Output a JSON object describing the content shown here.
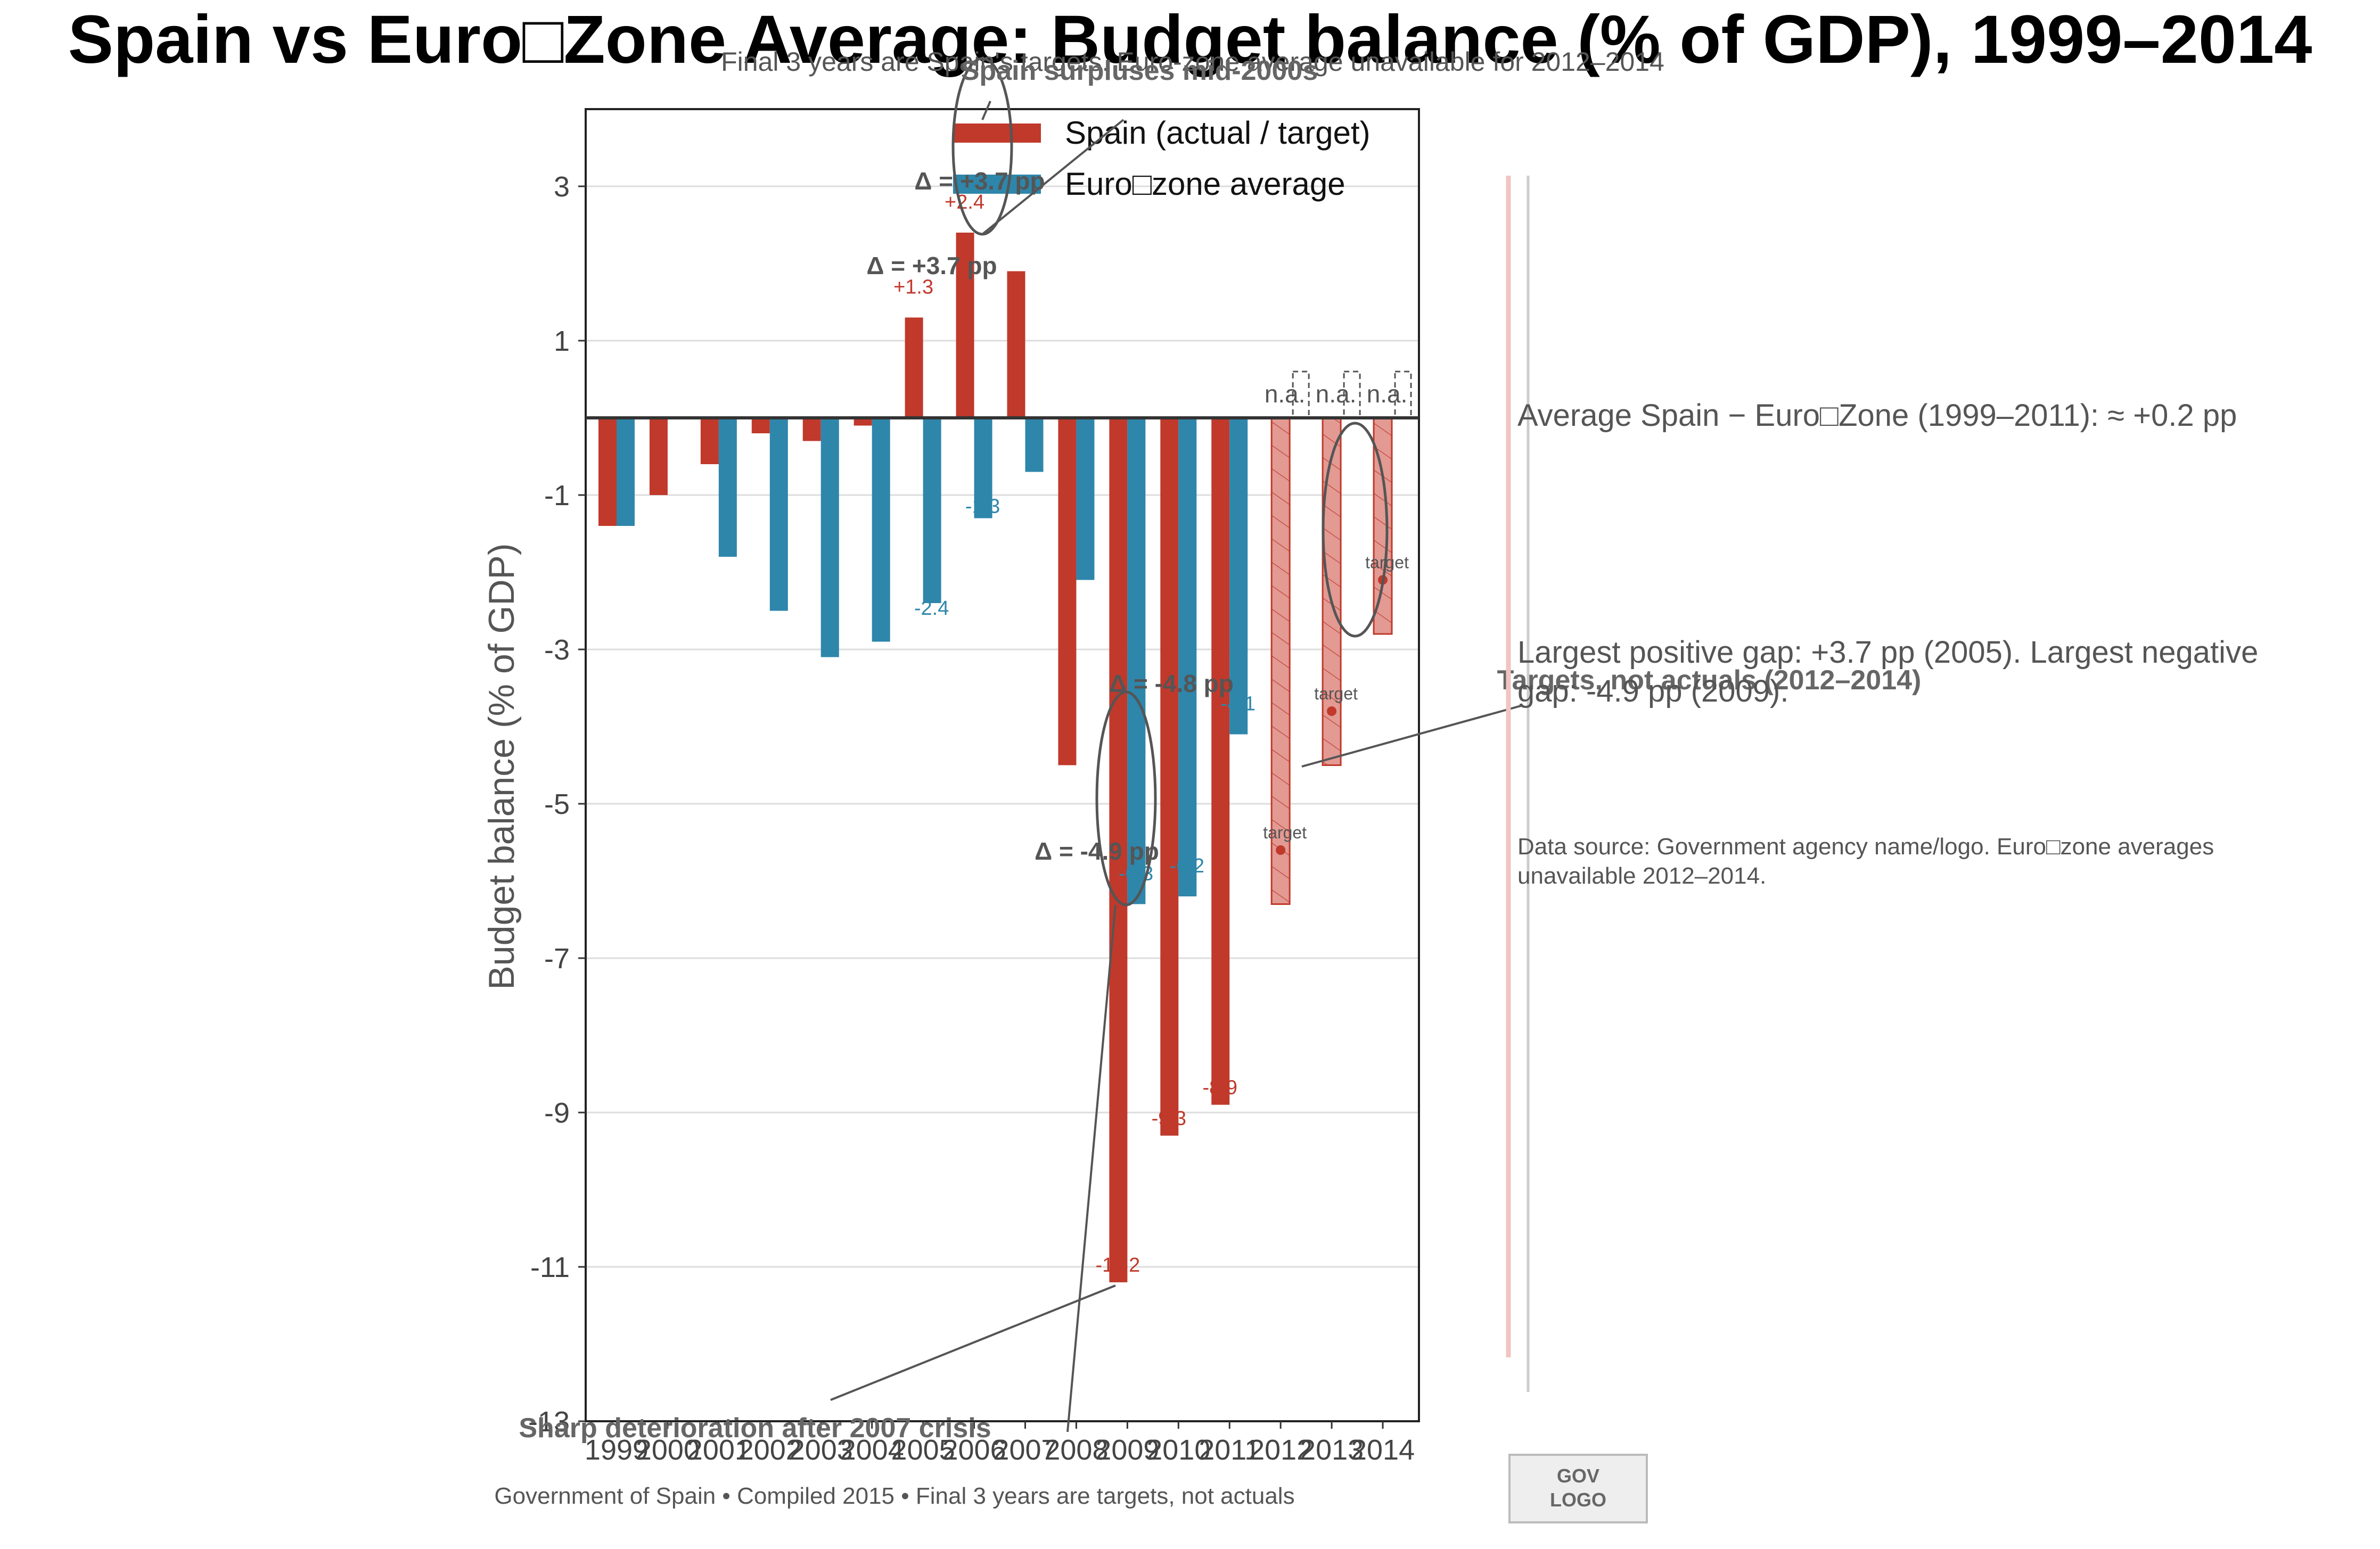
{
  "chart_data": {
    "type": "bar",
    "title": "Spain vs Euro□Zone Average: Budget balance (% of GDP), 1999–2014",
    "subtitle": "Final 3 years are Spain's targets. Euro‑zone average unavailable for 2012–2014",
    "ylabel": "Budget balance (% of GDP)",
    "xlabel": "",
    "ylim": [
      -13,
      4
    ],
    "yticks": [
      3,
      1,
      -1,
      -3,
      -5,
      -7,
      -9,
      -11,
      -13
    ],
    "categories": [
      "1999",
      "2000",
      "2001",
      "2002",
      "2003",
      "2004",
      "2005",
      "2006",
      "2007",
      "2008",
      "2009",
      "2010",
      "2011",
      "2012",
      "2013",
      "2014"
    ],
    "series": [
      {
        "name": "Spain (actual / target)",
        "color": "#c0392b",
        "values": [
          -1.4,
          -1.0,
          -0.6,
          -0.2,
          -0.3,
          -0.1,
          1.3,
          2.4,
          1.9,
          -4.5,
          -11.2,
          -9.3,
          -8.9,
          -6.3,
          -4.5,
          -2.8
        ]
      },
      {
        "name": "Euro□zone average",
        "color": "#2e86ab",
        "values": [
          -1.4,
          null,
          -1.8,
          -2.5,
          -3.1,
          -2.9,
          -2.4,
          -1.3,
          -0.7,
          -2.1,
          -6.3,
          -6.2,
          -4.1,
          null,
          null,
          null
        ]
      }
    ],
    "target_years": [
      "2012",
      "2013",
      "2014"
    ],
    "target_markers": [
      -5.6,
      -3.8,
      -2.1
    ],
    "data_labels_spain": [
      "+1.3",
      "+2.4",
      "-11.2",
      "-9.3",
      "-8.9"
    ],
    "data_labels_eurozone": [
      "-2.4",
      "-1.3",
      "-6.3",
      "-6.2",
      "-4.1"
    ],
    "grid": true,
    "legend_position": "top-right"
  },
  "legend": {
    "spain": "Spain (actual / target)",
    "eurozone": "Euro□zone average"
  },
  "annotations": {
    "surpluses": "Spain surpluses mid-2000s",
    "deterioration": "Sharp deterioration after 2007 crisis",
    "targets": "Targets, not actuals (2012–2014)",
    "delta_2005": "Δ = +3.7 pp",
    "delta_2006": "Δ = +3.7 pp",
    "delta_2009": "Δ = -4.9 pp",
    "delta_2011": "Δ = -4.8 pp",
    "na": "n.a.",
    "target": "target"
  },
  "side_notes": {
    "average_gap": "Average Spain − Euro□Zone (1999–2011): ≈ +0.2 pp",
    "largest_gap_line1": "Largest positive gap: +3.7 pp (2005). Largest negative",
    "largest_gap_line2": "gap: -4.9 pp (2009).",
    "source_line1": "Data source: Government agency name/logo. Euro□zone averages",
    "source_line2": "unavailable 2012–2014."
  },
  "footer": "Government of Spain • Compiled 2015 • Final 3 years are targets, not actuals",
  "logo": {
    "line1": "GOV",
    "line2": "LOGO"
  }
}
